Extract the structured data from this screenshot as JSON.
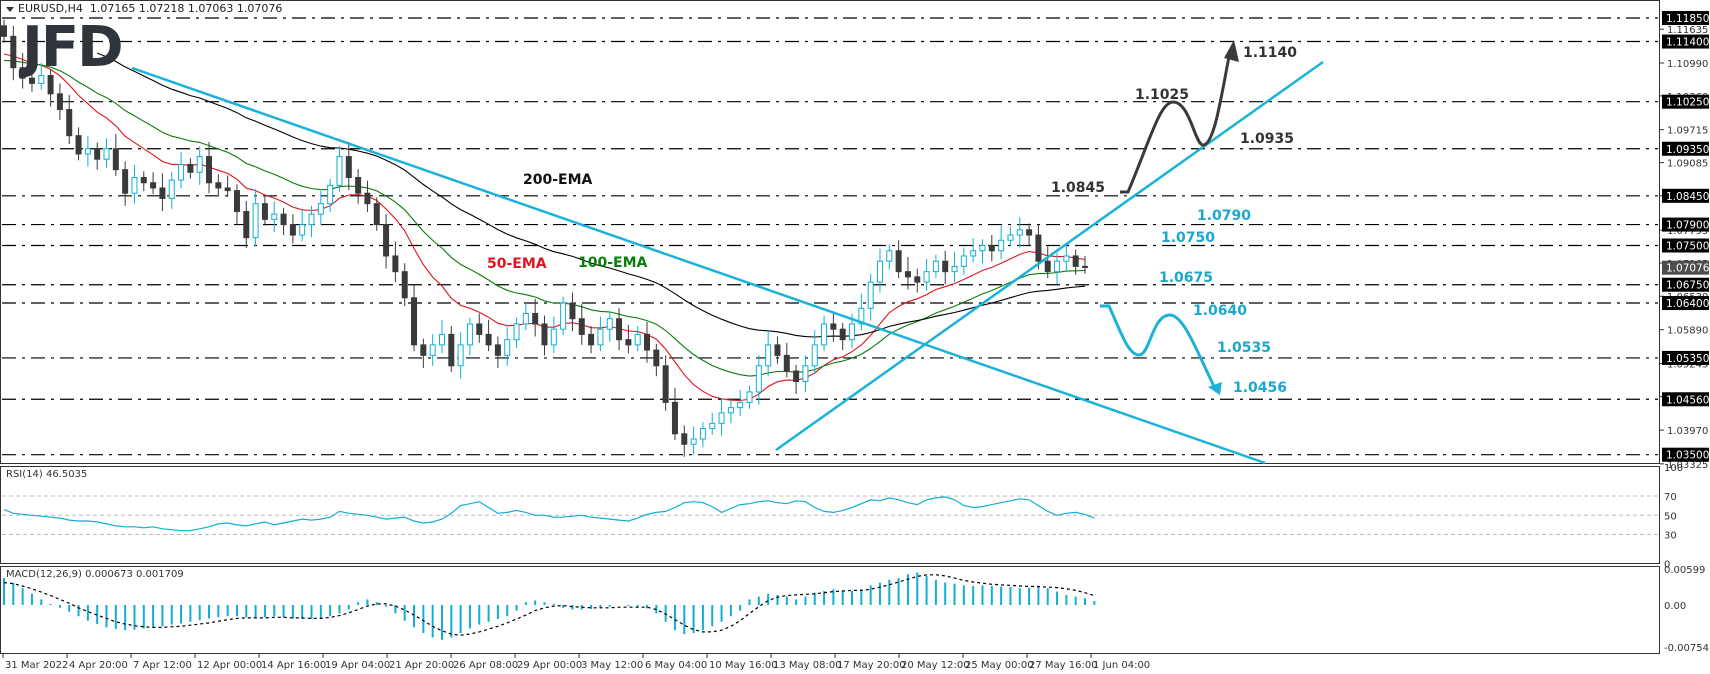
{
  "header": {
    "symbol_label": "EURUSD,H4",
    "ohlc": "1.07165 1.07218 1.07063 1.07076"
  },
  "logo": {
    "text": "JFD"
  },
  "rsi_panel": {
    "label": "RSI(14) 46.5035"
  },
  "macd_panel": {
    "label": "MACD(12,26,9) 0.000673 0.001709"
  },
  "colors": {
    "bull_candle": "#0fb0d6",
    "bear_candle": "#3a3a3a",
    "ema50": "#e0141e",
    "ema100": "#0a7d0a",
    "ema200": "#000000",
    "trendline": "#1ab2d8",
    "bull_scenario": "#3a3a3a",
    "bear_scenario": "#1ab2d8",
    "price_tag_bg": "#000000",
    "current_price_bg": "#4d4d4d",
    "grid_dash": "#000000",
    "rsi_line": "#12aed3",
    "macd_hist": "#12aed3",
    "macd_signal": "#000000"
  },
  "chart_data": [
    {
      "type": "candlestick",
      "title": "EURUSD, H4",
      "xlabel": "",
      "ylabel": "Price",
      "ylim": [
        1.03325,
        1.1185
      ],
      "x_tick_labels": [
        "31 Mar 2022",
        "4 Apr 20:00",
        "7 Apr 12:00",
        "12 Apr 00:00",
        "14 Apr 16:00",
        "19 Apr 04:00",
        "21 Apr 20:00",
        "26 Apr 08:00",
        "29 Apr 00:00",
        "3 May 12:00",
        "6 May 04:00",
        "10 May 16:00",
        "13 May 08:00",
        "17 May 20:00",
        "20 May 12:00",
        "25 May 00:00",
        "27 May 16:00",
        "1 Jun 04:00"
      ],
      "y_tick_labels": [
        "1.11635",
        "1.10990",
        "1.10360",
        "1.09715",
        "1.09085",
        "1.08450",
        "1.07795",
        "1.07165",
        "1.06530",
        "1.05890",
        "1.05245",
        "1.04610",
        "1.03970",
        "1.03325"
      ],
      "ohlc_last": {
        "open": 1.07165,
        "high": 1.07218,
        "low": 1.07063,
        "close": 1.07076
      },
      "horizontal_levels": [
        1.1185,
        1.114,
        1.1025,
        1.0935,
        1.0845,
        1.079,
        1.075,
        1.0675,
        1.064,
        1.0535,
        1.0456,
        1.035
      ],
      "price_path_close": [
        1.115,
        1.109,
        1.107,
        1.106,
        1.1075,
        1.104,
        1.101,
        1.096,
        1.0925,
        1.0935,
        1.0915,
        1.0935,
        1.0895,
        1.085,
        1.088,
        1.087,
        1.086,
        1.084,
        1.0875,
        1.0905,
        1.089,
        1.092,
        1.087,
        1.086,
        1.0855,
        1.0815,
        1.0765,
        1.083,
        1.08,
        1.081,
        1.079,
        1.077,
        1.079,
        1.081,
        1.083,
        1.0865,
        1.092,
        1.088,
        1.085,
        1.083,
        1.079,
        1.073,
        1.07,
        1.065,
        1.056,
        1.054,
        1.056,
        1.058,
        1.052,
        1.056,
        1.06,
        1.058,
        1.056,
        1.054,
        1.057,
        1.06,
        1.062,
        1.06,
        1.056,
        1.059,
        1.064,
        1.061,
        1.058,
        1.056,
        1.059,
        1.061,
        1.057,
        1.056,
        1.058,
        1.055,
        1.052,
        1.045,
        1.039,
        1.037,
        1.038,
        1.04,
        1.041,
        1.043,
        1.044,
        1.045,
        1.047,
        1.052,
        1.056,
        1.054,
        1.051,
        1.049,
        1.052,
        1.056,
        1.06,
        1.059,
        1.057,
        1.06,
        1.063,
        1.068,
        1.072,
        1.074,
        1.07,
        1.069,
        1.068,
        1.07,
        1.072,
        1.07,
        1.071,
        1.073,
        1.074,
        1.075,
        1.074,
        1.076,
        1.077,
        1.078,
        1.077,
        1.072,
        1.07,
        1.072,
        1.073,
        1.071,
        1.0708
      ],
      "series_ema": [
        {
          "name": "50-EMA",
          "label_price": 1.0742
        },
        {
          "name": "100-EMA",
          "label_price": 1.0745
        },
        {
          "name": "200-EMA",
          "label_price": 1.0855
        }
      ],
      "annotations": [
        {
          "text": "200-EMA",
          "color": "#000000"
        },
        {
          "text": "50-EMA",
          "color": "#e0141e"
        },
        {
          "text": "100-EMA",
          "color": "#0a7d0a"
        },
        {
          "text": "1.1140",
          "scenario": "bullish"
        },
        {
          "text": "1.1025",
          "scenario": "bullish"
        },
        {
          "text": "1.0935",
          "scenario": "bullish"
        },
        {
          "text": "1.0845",
          "scenario": "bullish"
        },
        {
          "text": "1.0790",
          "scenario": "bearish"
        },
        {
          "text": "1.0750",
          "scenario": "bearish"
        },
        {
          "text": "1.0675",
          "scenario": "bearish"
        },
        {
          "text": "1.0640",
          "scenario": "bearish"
        },
        {
          "text": "1.0535",
          "scenario": "bearish"
        },
        {
          "text": "1.0456",
          "scenario": "bearish"
        }
      ],
      "current_price": 1.07076
    },
    {
      "type": "line",
      "title": "RSI(14) 46.5035",
      "ylim": [
        0,
        100
      ],
      "y_tick_labels": [
        "100",
        "70",
        "50",
        "30",
        "0"
      ],
      "levels": [
        70,
        50,
        30
      ],
      "values": [
        56,
        52,
        51,
        50,
        49,
        48,
        47,
        45,
        44,
        44,
        43,
        41,
        39,
        38,
        38,
        37,
        38,
        36,
        35,
        34,
        34,
        36,
        38,
        41,
        42,
        40,
        39,
        41,
        43,
        40,
        42,
        44,
        46,
        45,
        46,
        48,
        54,
        52,
        51,
        50,
        48,
        46,
        47,
        48,
        44,
        42,
        43,
        46,
        52,
        60,
        62,
        64,
        58,
        52,
        53,
        55,
        53,
        50,
        50,
        48,
        48,
        49,
        50,
        48,
        47,
        46,
        45,
        44,
        47,
        51,
        53,
        54,
        58,
        63,
        64,
        63,
        59,
        53,
        57,
        61,
        62,
        64,
        65,
        63,
        62,
        65,
        64,
        58,
        54,
        53,
        55,
        58,
        62,
        66,
        65,
        68,
        66,
        63,
        61,
        66,
        68,
        69,
        66,
        60,
        58,
        59,
        61,
        63,
        65,
        67,
        66,
        60,
        54,
        50,
        52,
        53,
        51,
        47
      ]
    },
    {
      "type": "bar",
      "title": "MACD(12,26,9) 0.000673 0.001709",
      "ylim": [
        -0.007541,
        0.00599
      ],
      "y_tick_labels": [
        "0.00599",
        "0.00",
        "-0.007541"
      ],
      "histogram": [
        0.0048,
        0.004,
        0.003,
        0.002,
        0.001,
        0.0002,
        -0.0005,
        -0.0012,
        -0.002,
        -0.0028,
        -0.0034,
        -0.004,
        -0.0043,
        -0.0045,
        -0.0044,
        -0.0042,
        -0.004,
        -0.0038,
        -0.0035,
        -0.0033,
        -0.003,
        -0.0027,
        -0.0024,
        -0.0022,
        -0.002,
        -0.002,
        -0.0022,
        -0.0024,
        -0.0022,
        -0.002,
        -0.0022,
        -0.0024,
        -0.0025,
        -0.0025,
        -0.0023,
        -0.002,
        -0.0015,
        -0.0008,
        0.0005,
        0.001,
        0.0005,
        -0.0003,
        -0.0015,
        -0.0028,
        -0.004,
        -0.005,
        -0.0058,
        -0.0062,
        -0.0058,
        -0.005,
        -0.0042,
        -0.0035,
        -0.003,
        -0.0025,
        -0.002,
        -0.001,
        0.0005,
        0.0008,
        0.0005,
        0.0002,
        -0.0005,
        -0.0008,
        -0.0008,
        -0.0007,
        -0.0005,
        -0.0003,
        0.0,
        -0.0002,
        -0.0004,
        -0.0006,
        -0.0015,
        -0.003,
        -0.0045,
        -0.0052,
        -0.005,
        -0.0045,
        -0.0038,
        -0.003,
        -0.002,
        -0.001,
        0.001,
        0.0015,
        0.002,
        0.0018,
        0.0015,
        0.001,
        0.0015,
        0.0022,
        0.0025,
        0.0028,
        0.0026,
        0.0025,
        0.0028,
        0.0035,
        0.004,
        0.0045,
        0.0048,
        0.0055,
        0.0058,
        0.0052,
        0.0045,
        0.004,
        0.0038,
        0.0035,
        0.0034,
        0.0035,
        0.0034,
        0.0033,
        0.0032,
        0.003,
        0.0031,
        0.0033,
        0.003,
        0.0024,
        0.0018,
        0.0015,
        0.0012,
        0.0007
      ],
      "signal": [
        0.004,
        0.0038,
        0.0034,
        0.0029,
        0.0023,
        0.0017,
        0.001,
        0.0003,
        -0.0005,
        -0.0012,
        -0.0018,
        -0.0024,
        -0.003,
        -0.0034,
        -0.0037,
        -0.0039,
        -0.004,
        -0.004,
        -0.0039,
        -0.0038,
        -0.0036,
        -0.0034,
        -0.0032,
        -0.0029,
        -0.0026,
        -0.0024,
        -0.0023,
        -0.0023,
        -0.0023,
        -0.0022,
        -0.0022,
        -0.0023,
        -0.0023,
        -0.0024,
        -0.0024,
        -0.0022,
        -0.0019,
        -0.0014,
        -0.0008,
        -0.0002,
        0.0002,
        0.0002,
        -0.0002,
        -0.0009,
        -0.0018,
        -0.0028,
        -0.0038,
        -0.0046,
        -0.0052,
        -0.0054,
        -0.0052,
        -0.0048,
        -0.0043,
        -0.0038,
        -0.0032,
        -0.0025,
        -0.0018,
        -0.001,
        -0.0005,
        -0.0002,
        -0.0001,
        -0.0003,
        -0.0004,
        -0.0005,
        -0.0005,
        -0.0005,
        -0.0004,
        -0.0004,
        -0.0004,
        -0.0004,
        -0.0008,
        -0.0016,
        -0.0026,
        -0.0036,
        -0.0044,
        -0.0048,
        -0.0048,
        -0.0045,
        -0.0038,
        -0.0028,
        -0.0015,
        -0.0003,
        0.0008,
        0.0014,
        0.0017,
        0.0018,
        0.0019,
        0.002,
        0.0022,
        0.0024,
        0.0025,
        0.0026,
        0.0026,
        0.0028,
        0.0032,
        0.0036,
        0.0041,
        0.0046,
        0.0051,
        0.0054,
        0.0054,
        0.0052,
        0.0048,
        0.0044,
        0.0041,
        0.0039,
        0.0037,
        0.0036,
        0.0035,
        0.0034,
        0.0033,
        0.0033,
        0.0032,
        0.0031,
        0.0029,
        0.0026,
        0.0022,
        0.0017
      ]
    }
  ]
}
